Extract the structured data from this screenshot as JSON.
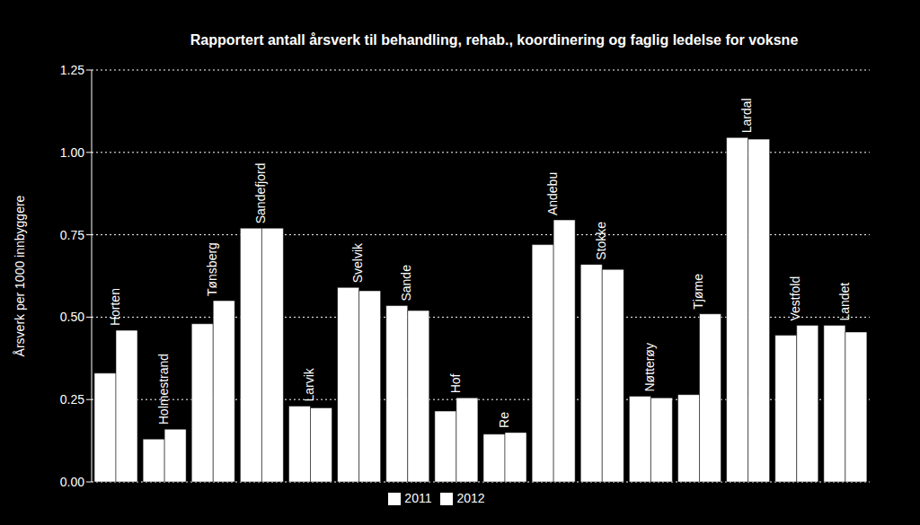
{
  "chart_data": {
    "type": "bar",
    "title": "Rapportert antall årsverk til behandling, rehab., koordinering og faglig ledelse for voksne",
    "y_label": "Årsverk per 1000 innbyggere",
    "categories": [
      "Horten",
      "Holmestrand",
      "Tønsberg",
      "Sandefjord",
      "Larvik",
      "Svelvik",
      "Sande",
      "Hof",
      "Re",
      "Andebu",
      "Stokke",
      "Nøtterøy",
      "Tjøme",
      "Lardal",
      "Vestfold",
      "Landet"
    ],
    "series": [
      {
        "name": "2011",
        "color": "#ffffff",
        "values": [
          0.33,
          0.13,
          0.48,
          0.77,
          0.23,
          0.59,
          0.535,
          0.215,
          0.145,
          0.72,
          0.66,
          0.26,
          0.265,
          1.045,
          0.445,
          0.475
        ]
      },
      {
        "name": "2012",
        "color": "#ffffff",
        "values": [
          0.46,
          0.16,
          0.55,
          0.77,
          0.225,
          0.58,
          0.52,
          0.255,
          0.15,
          0.795,
          0.645,
          0.255,
          0.51,
          1.04,
          0.475,
          0.455
        ]
      }
    ],
    "ylim": [
      0,
      1.25
    ],
    "yticks": [
      {
        "value": 0,
        "label": "0.00"
      },
      {
        "value": 0.25,
        "label": "0.25"
      },
      {
        "value": 0.5,
        "label": "0.50"
      },
      {
        "value": 0.75,
        "label": "0.75"
      },
      {
        "value": 1,
        "label": "1.00"
      },
      {
        "value": 1.25,
        "label": "1.25"
      }
    ],
    "grid": true,
    "legend": "bottom",
    "tick_labels": "y"
  }
}
